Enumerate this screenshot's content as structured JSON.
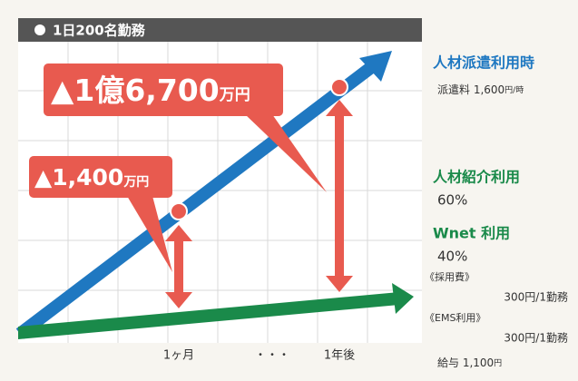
{
  "header": {
    "title": "1日200名勤務"
  },
  "callouts": [
    {
      "value": "▲1億6,700",
      "unit": "万円"
    },
    {
      "value": "▲1,400",
      "unit": "万円"
    }
  ],
  "x_labels": [
    "1ヶ月",
    "・・・",
    "1年後"
  ],
  "legend": {
    "dispatch": {
      "title": "人材派遣利用時",
      "fee": "派遣料 1,600",
      "fee_unit": "円/時"
    },
    "referral": {
      "title": "人材紹介利用",
      "rate": "60%"
    },
    "wnet": {
      "title": "Wnet 利用",
      "rate": "40%",
      "costs": [
        {
          "label": "《採用費》",
          "value": "300円/1勤務"
        },
        {
          "label": "《EMS利用》",
          "value": "300円/1勤務"
        }
      ],
      "salary": "給与 1,100",
      "salary_unit": "円"
    }
  }
}
